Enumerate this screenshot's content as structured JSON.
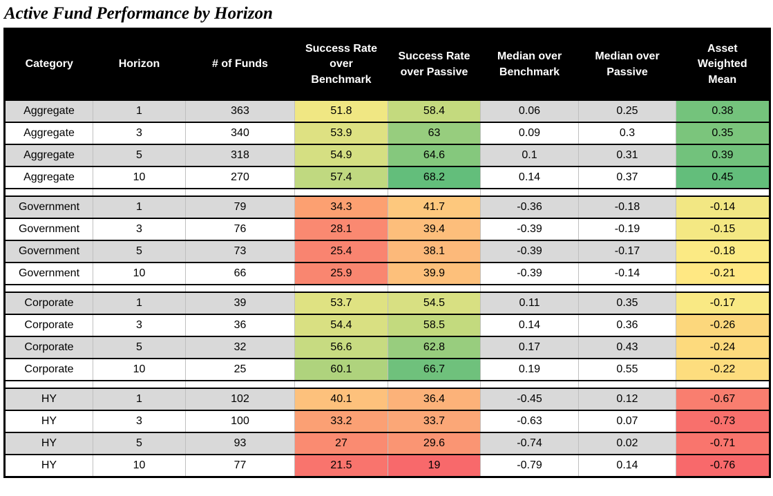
{
  "title": "Active Fund Performance by Horizon",
  "colors": {
    "header_bg": "#000000",
    "header_text": "#FFFFFF",
    "row_alt_bg": "#D9D9D9",
    "row_bg": "#FFFFFF",
    "border": "#000000",
    "column_divider": "#BFBFBF",
    "scale_low": "#F8696B",
    "scale_mid": "#FFEB84",
    "scale_high": "#63BE7B"
  },
  "chart_data": {
    "type": "table",
    "title": "Active Fund Performance by Horizon",
    "columns": [
      "Category",
      "Horizon",
      "# of Funds",
      "Success Rate over Benchmark",
      "Success Rate over Passive",
      "Median over Benchmark",
      "Median over Passive",
      "Asset Weighted Mean"
    ],
    "groups": [
      {
        "category": "Aggregate",
        "rows": [
          {
            "horizon": 1,
            "funds": 363,
            "sr_benchmark": 51.8,
            "sr_passive": 58.4,
            "median_benchmark": 0.06,
            "median_passive": 0.25,
            "asset_weighted_mean": 0.38,
            "cell_colors": {
              "sr_benchmark": "#F0E783",
              "sr_passive": "#C4DA7E",
              "asset_weighted_mean": "#74C37C"
            }
          },
          {
            "horizon": 3,
            "funds": 340,
            "sr_benchmark": 53.9,
            "sr_passive": 63,
            "median_benchmark": 0.09,
            "median_passive": 0.3,
            "asset_weighted_mean": 0.35,
            "cell_colors": {
              "sr_benchmark": "#DEE182",
              "sr_passive": "#97CD7E",
              "asset_weighted_mean": "#7BC57C"
            }
          },
          {
            "horizon": 5,
            "funds": 318,
            "sr_benchmark": 54.9,
            "sr_passive": 64.6,
            "median_benchmark": 0.1,
            "median_passive": 0.31,
            "asset_weighted_mean": 0.39,
            "cell_colors": {
              "sr_benchmark": "#D5DF82",
              "sr_passive": "#85C87D",
              "asset_weighted_mean": "#72C27C"
            }
          },
          {
            "horizon": 10,
            "funds": 270,
            "sr_benchmark": 57.4,
            "sr_passive": 68.2,
            "median_benchmark": 0.14,
            "median_passive": 0.37,
            "asset_weighted_mean": 0.45,
            "cell_colors": {
              "sr_benchmark": "#C0D980",
              "sr_passive": "#63BE7B",
              "asset_weighted_mean": "#63BE7B"
            }
          }
        ]
      },
      {
        "category": "Government",
        "rows": [
          {
            "horizon": 1,
            "funds": 79,
            "sr_benchmark": 34.3,
            "sr_passive": 41.7,
            "median_benchmark": -0.36,
            "median_passive": -0.18,
            "asset_weighted_mean": -0.14,
            "cell_colors": {
              "sr_benchmark": "#FCA071",
              "sr_passive": "#FDC87D",
              "asset_weighted_mean": "#F2E783"
            }
          },
          {
            "horizon": 3,
            "funds": 76,
            "sr_benchmark": 28.1,
            "sr_passive": 39.4,
            "median_benchmark": -0.39,
            "median_passive": -0.19,
            "asset_weighted_mean": -0.15,
            "cell_colors": {
              "sr_benchmark": "#FA8971",
              "sr_passive": "#FDBE7B",
              "asset_weighted_mean": "#F4E883"
            }
          },
          {
            "horizon": 5,
            "funds": 73,
            "sr_benchmark": 25.4,
            "sr_passive": 38.1,
            "median_benchmark": -0.39,
            "median_passive": -0.17,
            "asset_weighted_mean": -0.18,
            "cell_colors": {
              "sr_benchmark": "#F98470",
              "sr_passive": "#FCB97A",
              "asset_weighted_mean": "#FBEA84"
            }
          },
          {
            "horizon": 10,
            "funds": 66,
            "sr_benchmark": 25.9,
            "sr_passive": 39.9,
            "median_benchmark": -0.39,
            "median_passive": -0.14,
            "asset_weighted_mean": -0.21,
            "cell_colors": {
              "sr_benchmark": "#F98670",
              "sr_passive": "#FDC07B",
              "asset_weighted_mean": "#FFE883"
            }
          }
        ]
      },
      {
        "category": "Corporate",
        "rows": [
          {
            "horizon": 1,
            "funds": 39,
            "sr_benchmark": 53.7,
            "sr_passive": 54.5,
            "median_benchmark": 0.11,
            "median_passive": 0.35,
            "asset_weighted_mean": -0.17,
            "cell_colors": {
              "sr_benchmark": "#DFE282",
              "sr_passive": "#D8E082",
              "asset_weighted_mean": "#F9E984"
            }
          },
          {
            "horizon": 3,
            "funds": 36,
            "sr_benchmark": 54.4,
            "sr_passive": 58.5,
            "median_benchmark": 0.14,
            "median_passive": 0.36,
            "asset_weighted_mean": -0.26,
            "cell_colors": {
              "sr_benchmark": "#D9E082",
              "sr_passive": "#C3DA7E",
              "asset_weighted_mean": "#FCD77C"
            }
          },
          {
            "horizon": 5,
            "funds": 32,
            "sr_benchmark": 56.6,
            "sr_passive": 62.8,
            "median_benchmark": 0.17,
            "median_passive": 0.43,
            "asset_weighted_mean": -0.24,
            "cell_colors": {
              "sr_benchmark": "#C7DB81",
              "sr_passive": "#98CD7E",
              "asset_weighted_mean": "#FDDA7D"
            }
          },
          {
            "horizon": 10,
            "funds": 25,
            "sr_benchmark": 60.1,
            "sr_passive": 66.7,
            "median_benchmark": 0.19,
            "median_passive": 0.55,
            "asset_weighted_mean": -0.22,
            "cell_colors": {
              "sr_benchmark": "#AFD37D",
              "sr_passive": "#6FC17C",
              "asset_weighted_mean": "#FDDD7E"
            }
          }
        ]
      },
      {
        "category": "HY",
        "rows": [
          {
            "horizon": 1,
            "funds": 102,
            "sr_benchmark": 40.1,
            "sr_passive": 36.4,
            "median_benchmark": -0.45,
            "median_passive": 0.12,
            "asset_weighted_mean": -0.67,
            "cell_colors": {
              "sr_benchmark": "#FDC17C",
              "sr_passive": "#FCB279",
              "asset_weighted_mean": "#F97E6F"
            }
          },
          {
            "horizon": 3,
            "funds": 100,
            "sr_benchmark": 33.2,
            "sr_passive": 33.7,
            "median_benchmark": -0.63,
            "median_passive": 0.07,
            "asset_weighted_mean": -0.73,
            "cell_colors": {
              "sr_benchmark": "#FBA074",
              "sr_passive": "#FBA777",
              "asset_weighted_mean": "#F8706C"
            }
          },
          {
            "horizon": 5,
            "funds": 93,
            "sr_benchmark": 27,
            "sr_passive": 29.6,
            "median_benchmark": -0.74,
            "median_passive": 0.02,
            "asset_weighted_mean": -0.71,
            "cell_colors": {
              "sr_benchmark": "#FA8B71",
              "sr_passive": "#FA9573",
              "asset_weighted_mean": "#F9756D"
            }
          },
          {
            "horizon": 10,
            "funds": 77,
            "sr_benchmark": 21.5,
            "sr_passive": 19,
            "median_benchmark": -0.79,
            "median_passive": 0.14,
            "asset_weighted_mean": -0.76,
            "cell_colors": {
              "sr_benchmark": "#F9746D",
              "sr_passive": "#F8696B",
              "asset_weighted_mean": "#F8696B"
            }
          }
        ]
      }
    ]
  }
}
